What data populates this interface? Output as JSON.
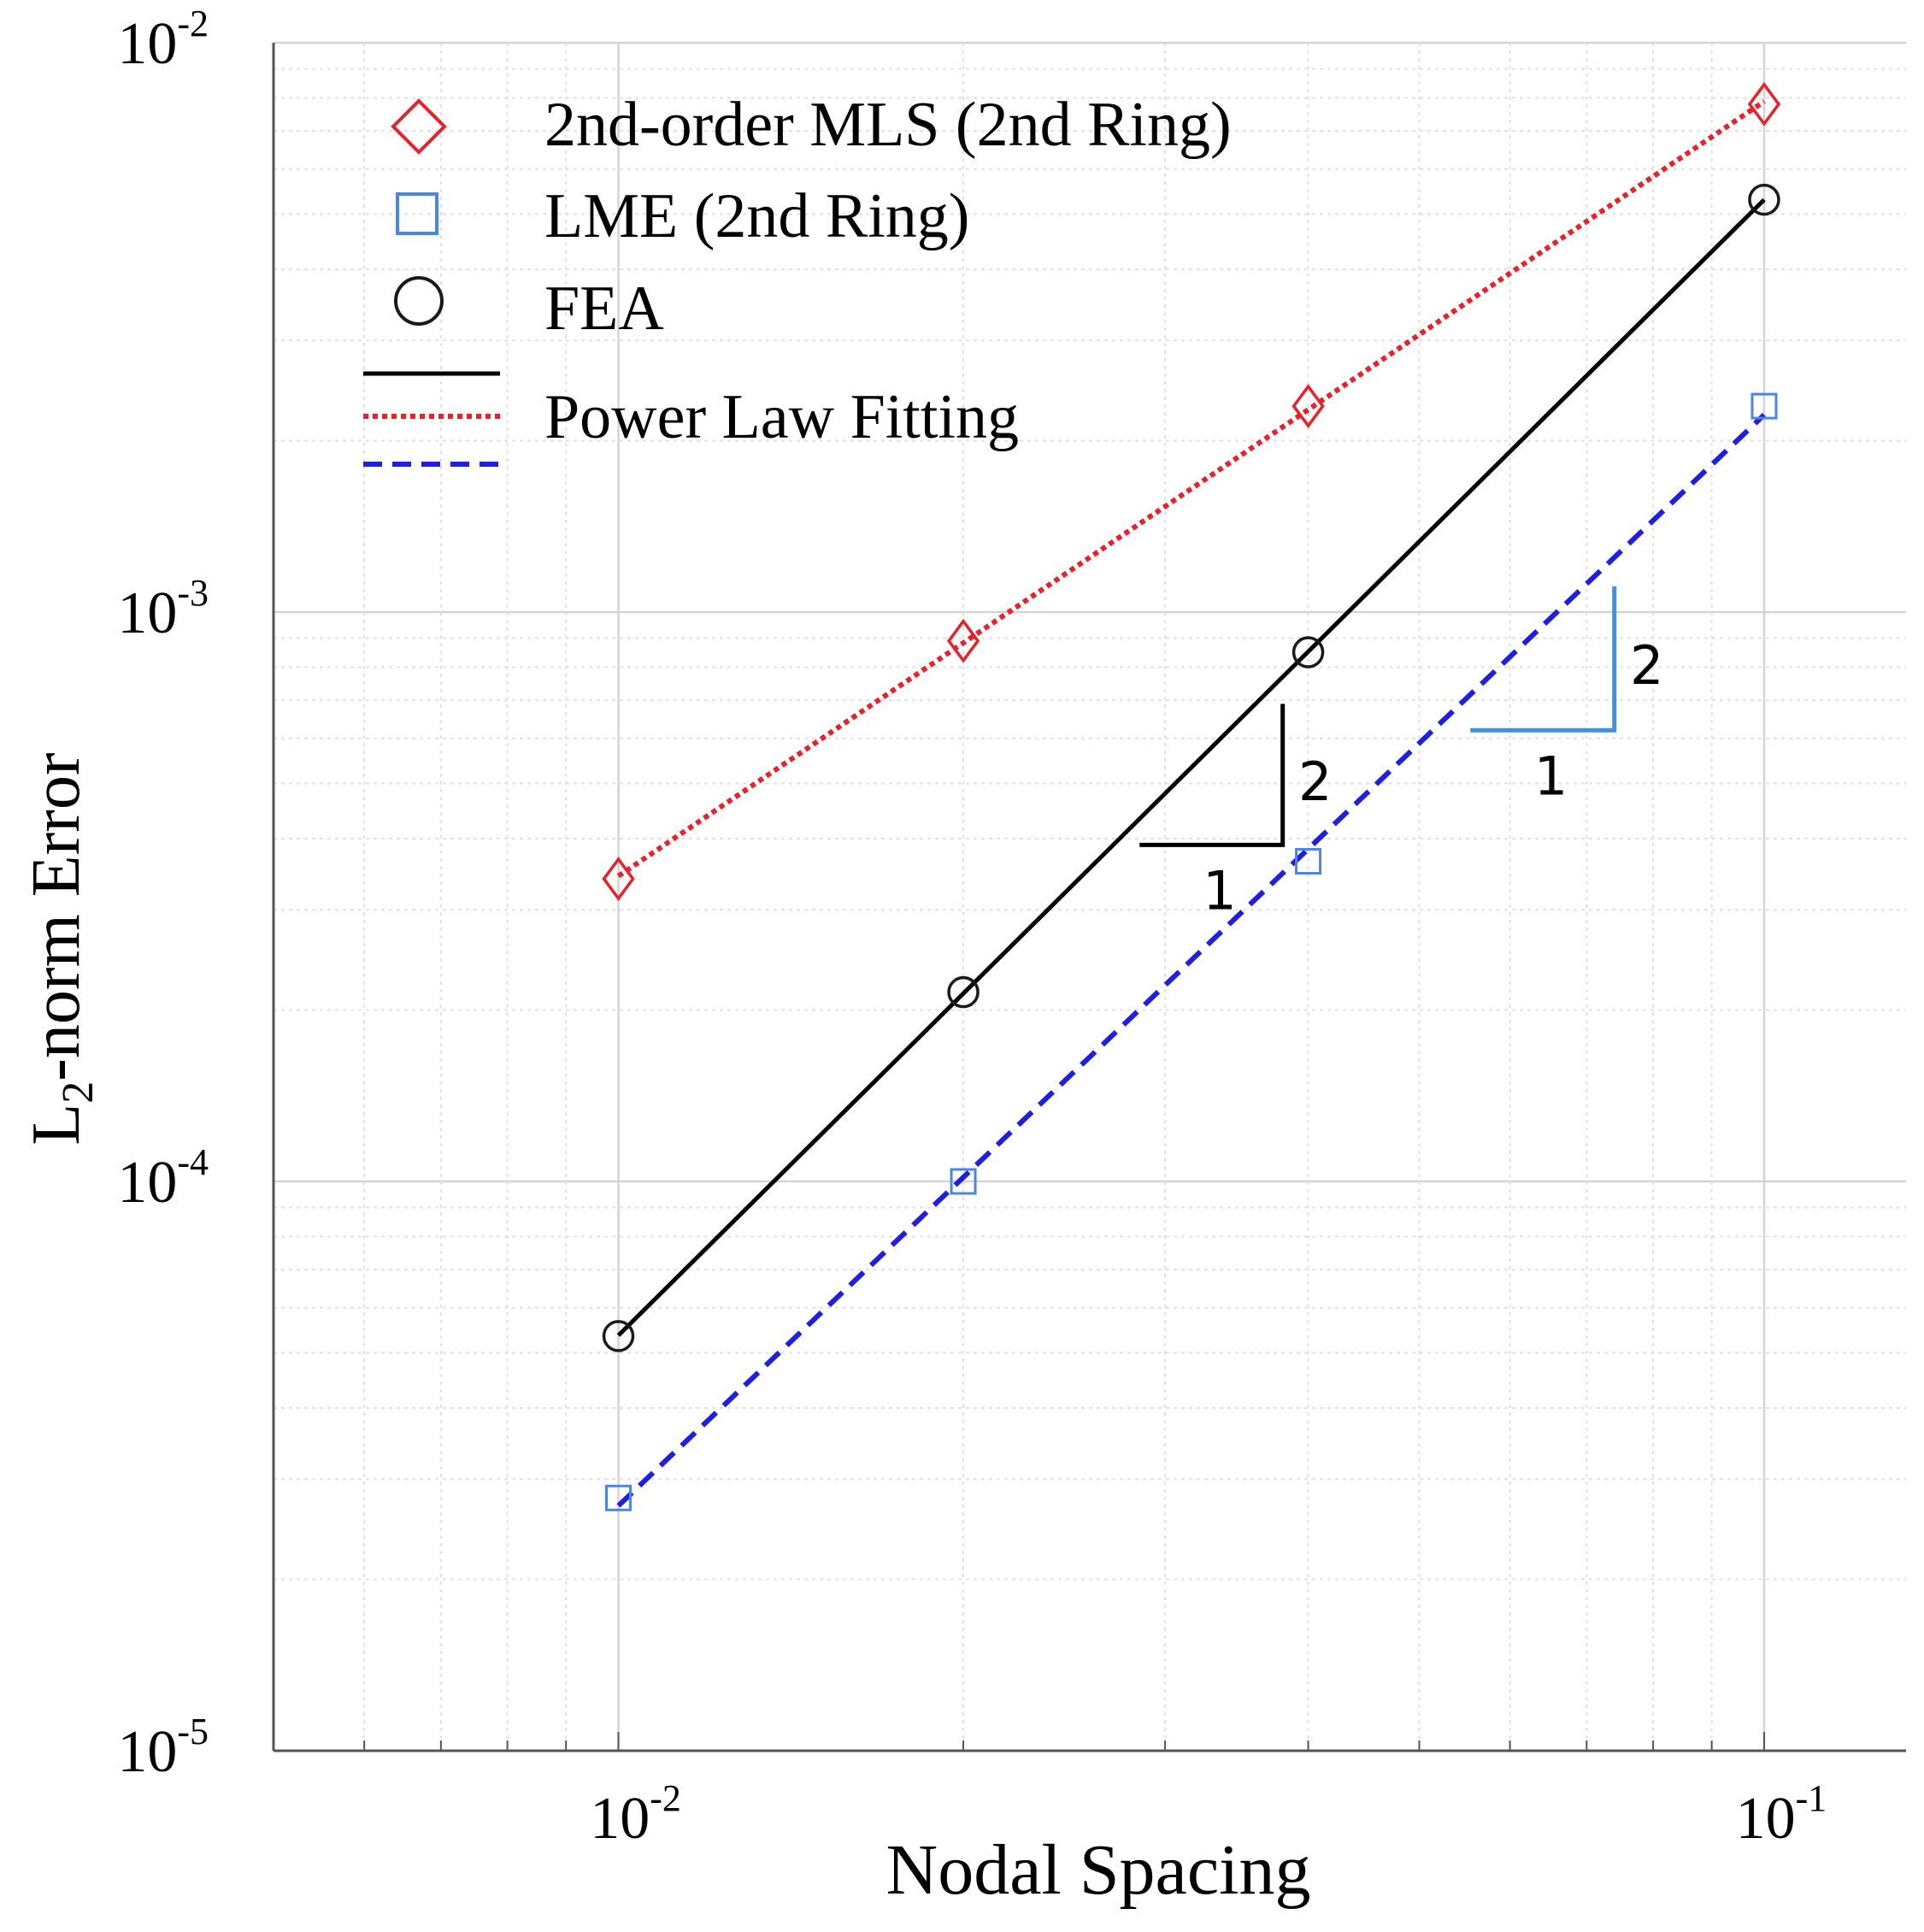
{
  "chart_data": {
    "type": "line",
    "xscale": "log",
    "yscale": "log",
    "xlabel": "Nodal Spacing",
    "ylabel": {
      "prefix": "L",
      "subscript": "2",
      "suffix": "-norm Error"
    },
    "xlim": [
      0.005,
      0.133
    ],
    "ylim": [
      1e-05,
      0.01
    ],
    "grid": true,
    "legend_position": "top-left",
    "x_ticks": [
      {
        "value": 0.01,
        "base": "10",
        "exp": "-2"
      },
      {
        "value": 0.1,
        "base": "10",
        "exp": "-1"
      }
    ],
    "y_ticks": [
      {
        "value": 0.01,
        "base": "10",
        "exp": "-2"
      },
      {
        "value": 0.001,
        "base": "10",
        "exp": "-3"
      },
      {
        "value": 0.0001,
        "base": "10",
        "exp": "-4"
      },
      {
        "value": 1e-05,
        "base": "10",
        "exp": "-5"
      }
    ],
    "series": [
      {
        "name": "2nd-order MLS (2nd Ring)",
        "marker": "diamond",
        "marker_color": "#e8212a",
        "fit_style": "dotted",
        "fit_color": "#e8212a",
        "x": [
          0.01,
          0.02,
          0.04,
          0.1
        ],
        "y": [
          0.00034,
          0.00089,
          0.0023,
          0.0078
        ]
      },
      {
        "name": "LME (2nd Ring)",
        "marker": "square",
        "marker_color": "#4a86e8",
        "fit_style": "dashed",
        "fit_color": "#1f1fe0",
        "x": [
          0.01,
          0.02,
          0.04,
          0.1
        ],
        "y": [
          2.78e-05,
          0.0001,
          0.000365,
          0.0023
        ]
      },
      {
        "name": "FEA",
        "marker": "circle",
        "marker_color": "#1a1a1a",
        "fit_style": "solid",
        "fit_color": "#000000",
        "x": [
          0.01,
          0.02,
          0.04,
          0.1
        ],
        "y": [
          5.35e-05,
          0.000215,
          0.00085,
          0.0053
        ]
      }
    ],
    "legend_fit_label": "Power Law Fitting",
    "slope_triangles": [
      {
        "color": "#000000",
        "run_label": "1",
        "rise_label": "2",
        "x0": 0.0285,
        "x1": 0.038,
        "y0": 0.00039,
        "y1": 0.00069
      },
      {
        "color": "#4a8fd6",
        "run_label": "1",
        "rise_label": "2",
        "x0": 0.0554,
        "x1": 0.074,
        "y0": 0.00062,
        "y1": 0.00111
      }
    ]
  }
}
